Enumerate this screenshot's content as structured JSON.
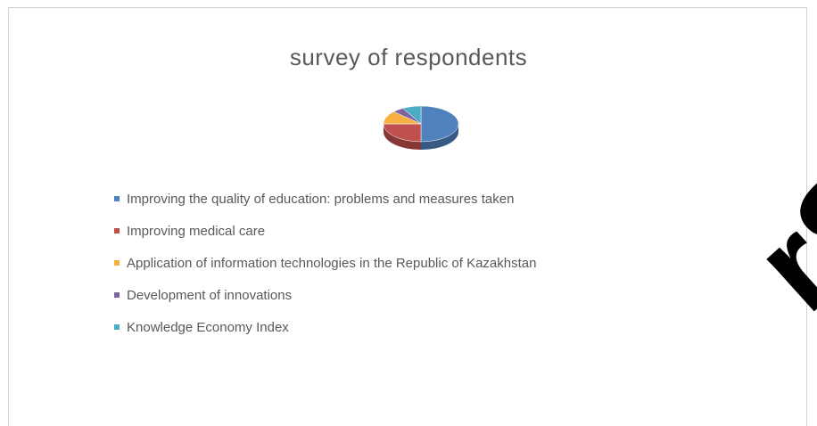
{
  "chart_data": {
    "type": "pie",
    "title": "survey of respondents",
    "categories": [
      "Improving the quality of education: problems and measures taken",
      "Improving medical care",
      "Application of information technologies in the Republic of Kazakhstan",
      "Development of innovations",
      "Knowledge Economy Index"
    ],
    "values": [
      50,
      25,
      12,
      5,
      8
    ],
    "colors": [
      "#4f81bd",
      "#c0504d",
      "#f5b041",
      "#8064a2",
      "#4bacc6"
    ],
    "legend_position": "bottom"
  },
  "watermark": "rSi"
}
